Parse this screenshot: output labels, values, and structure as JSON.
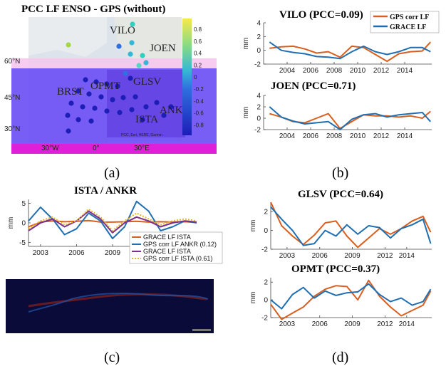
{
  "panels": {
    "a": "(a)",
    "b": "(b)",
    "c": "(c)",
    "d": "(d)"
  },
  "colors": {
    "orange": "#d95f1e",
    "blue": "#1f6fb2",
    "purple": "#7b2f8e",
    "gold": "#e6b422",
    "map_overlay": "#6a4cf5"
  },
  "map": {
    "title": "PCC LF ENSO - GPS (without)",
    "stations": [
      "VILO",
      "JOEN",
      "GLSV",
      "BRST",
      "OPMT",
      "ISTA",
      "ANKR"
    ],
    "lat_labels": [
      "60°N",
      "45°N",
      "30°N"
    ],
    "lon_labels": [
      "30°W",
      "0°",
      "30°E"
    ],
    "colorbar_ticks": [
      "0.8",
      "0.6",
      "0.4",
      "0.2",
      "0",
      "-0.2",
      "-0.4",
      "-0.6",
      "-0.8"
    ],
    "credit": "PCC, Esri, HERE, Garmin"
  },
  "chart_data": [
    {
      "type": "line",
      "title": "VILO (PCC=0.09)",
      "ylabel": "mm",
      "ylim": [
        -2,
        4
      ],
      "yticks": [
        "4",
        "2",
        "0",
        "-2"
      ],
      "xticks": [
        "2004",
        "2006",
        "2008",
        "2010",
        "2012",
        "2014"
      ],
      "legend": [
        "GPS corr LF",
        "GRACE LF"
      ],
      "series": [
        {
          "name": "GPS corr LF",
          "x": [
            2002.5,
            2003.5,
            2004.5,
            2005.5,
            2006.5,
            2007.5,
            2008.5,
            2009.5,
            2010.5,
            2011.5,
            2012.5,
            2013.5,
            2014.5,
            2015.5,
            2016.2
          ],
          "values": [
            0.3,
            0.5,
            0.6,
            0.2,
            -0.4,
            -0.2,
            -1.0,
            0.6,
            0.4,
            -0.6,
            -1.6,
            -0.5,
            -0.2,
            -0.1,
            1.2
          ]
        },
        {
          "name": "GRACE LF",
          "x": [
            2002.5,
            2003.5,
            2004.5,
            2005.5,
            2006.5,
            2007.5,
            2008.5,
            2009.5,
            2010.5,
            2011.5,
            2012.5,
            2013.5,
            2014.5,
            2015.5,
            2016.2
          ],
          "values": [
            1.2,
            0.0,
            -0.3,
            -0.5,
            -0.9,
            -1.0,
            -1.2,
            -0.2,
            0.6,
            -0.2,
            -0.6,
            -0.2,
            0.4,
            0.4,
            -0.2
          ]
        }
      ]
    },
    {
      "type": "line",
      "title": "JOEN (PCC=0.71)",
      "ylabel": "mm",
      "ylim": [
        -2,
        4
      ],
      "yticks": [
        "4",
        "2",
        "0",
        "-2"
      ],
      "xticks": [
        "2004",
        "2006",
        "2008",
        "2010",
        "2012",
        "2014"
      ],
      "series": [
        {
          "name": "GPS corr LF",
          "x": [
            2002.5,
            2003.5,
            2004.5,
            2005.5,
            2006.5,
            2007.5,
            2008.5,
            2009.5,
            2010.5,
            2011.5,
            2012.5,
            2013.5,
            2014.5,
            2015.5,
            2016.2
          ],
          "values": [
            0.8,
            0.2,
            -0.6,
            -0.8,
            0.0,
            0.8,
            -1.8,
            -0.6,
            0.6,
            0.4,
            0.4,
            0.2,
            0.4,
            0.0,
            1.2
          ]
        },
        {
          "name": "GRACE LF",
          "x": [
            2002.5,
            2003.5,
            2004.5,
            2005.5,
            2006.5,
            2007.5,
            2008.5,
            2009.5,
            2010.5,
            2011.5,
            2012.5,
            2013.5,
            2014.5,
            2015.5,
            2016.2
          ],
          "values": [
            2.0,
            0.2,
            -0.5,
            -1.0,
            -0.8,
            -0.6,
            -2.0,
            -0.2,
            0.6,
            0.8,
            0.2,
            0.6,
            0.8,
            1.0,
            -0.6
          ]
        }
      ]
    },
    {
      "type": "line",
      "title": "ISTA / ANKR",
      "ylabel": "mm",
      "ylim": [
        -6,
        6
      ],
      "yticks": [
        "5",
        "0",
        "-5"
      ],
      "xticks": [
        "2003",
        "2006",
        "2009"
      ],
      "legend": [
        "GRACE LF ISTA",
        "GPS corr LF ANKR (0.12)",
        "GRACE LF ISTA",
        "GPS corr LF ISTA (0.61)"
      ],
      "series": [
        {
          "name": "GRACE LF ISTA",
          "x": [
            2002,
            2003,
            2004,
            2005,
            2006,
            2007,
            2008,
            2009,
            2010,
            2011,
            2012,
            2013,
            2014,
            2015,
            2016
          ],
          "values": [
            -1.0,
            0.2,
            0.5,
            0.3,
            0.4,
            0.6,
            0.2,
            0.2,
            0.3,
            0.4,
            0.2,
            0.3,
            0.2,
            0.3,
            0.1
          ]
        },
        {
          "name": "GPS corr LF ANKR (0.12)",
          "x": [
            2002,
            2003,
            2004,
            2005,
            2006,
            2007,
            2008,
            2009,
            2010,
            2011,
            2012,
            2013,
            2014,
            2015,
            2016
          ],
          "values": [
            0.5,
            4.0,
            1.0,
            -3.0,
            -1.5,
            2.5,
            0.5,
            -4.0,
            -1.0,
            5.5,
            3.0,
            -2.0,
            -1.0,
            0.5,
            0.0
          ]
        },
        {
          "name": "GRACE LF ISTA",
          "x": [
            2002,
            2003,
            2004,
            2005,
            2006,
            2007,
            2008,
            2009,
            2010,
            2011,
            2012,
            2013,
            2014,
            2015,
            2016
          ],
          "values": [
            -2.0,
            0.0,
            1.0,
            -1.0,
            0.5,
            3.0,
            1.0,
            -2.5,
            0.0,
            1.5,
            0.5,
            -1.0,
            0.0,
            0.5,
            0.2
          ]
        },
        {
          "name": "GPS corr LF ISTA (0.61)",
          "x": [
            2002,
            2003,
            2004,
            2005,
            2006,
            2007,
            2008,
            2009,
            2010,
            2011,
            2012,
            2013,
            2014,
            2015,
            2016
          ],
          "values": [
            -1.5,
            0.5,
            1.5,
            -0.5,
            0.5,
            3.5,
            1.5,
            -2.0,
            0.5,
            2.5,
            1.0,
            -0.5,
            0.5,
            1.0,
            0.5
          ]
        }
      ]
    },
    {
      "type": "line",
      "title": "GLSV (PCC=0.64)",
      "ylabel": "mm",
      "ylim": [
        -2,
        3
      ],
      "yticks": [
        "2",
        "0",
        "-2"
      ],
      "xticks": [
        "2003",
        "2006",
        "2009",
        "2012",
        "2014"
      ],
      "series": [
        {
          "name": "GPS corr LF",
          "x": [
            2001.5,
            2002.5,
            2003.5,
            2004.5,
            2005.5,
            2006.5,
            2007.5,
            2008.5,
            2009.5,
            2010.5,
            2011.5,
            2012.5,
            2013.5,
            2014.5,
            2015.5,
            2016.2
          ],
          "values": [
            3.0,
            0.5,
            -0.6,
            -1.5,
            -0.5,
            0.8,
            1.0,
            -0.6,
            -1.8,
            -0.8,
            0.2,
            -0.4,
            0.2,
            1.0,
            1.5,
            -0.2
          ]
        },
        {
          "name": "GRACE LF",
          "x": [
            2001.5,
            2002.5,
            2003.5,
            2004.5,
            2005.5,
            2006.5,
            2007.5,
            2008.5,
            2009.5,
            2010.5,
            2011.5,
            2012.5,
            2013.5,
            2014.5,
            2015.5,
            2016.2
          ],
          "values": [
            2.5,
            1.2,
            0.0,
            -1.6,
            -1.4,
            0.0,
            -0.6,
            0.6,
            -0.4,
            0.5,
            0.3,
            -0.8,
            0.2,
            0.6,
            1.2,
            -1.4
          ]
        }
      ]
    },
    {
      "type": "line",
      "title": "OPMT (PCC=0.37)",
      "ylabel": "mm",
      "ylim": [
        -2,
        2.5
      ],
      "yticks": [
        "2",
        "0",
        "-2"
      ],
      "xticks": [
        "2003",
        "2006",
        "2009",
        "2012",
        "2014"
      ],
      "series": [
        {
          "name": "GPS corr LF",
          "x": [
            2001.5,
            2002.5,
            2003.5,
            2004.5,
            2005.5,
            2006.5,
            2007.5,
            2008.5,
            2009.5,
            2010.5,
            2011.5,
            2012.5,
            2013.5,
            2014.5,
            2015.5,
            2016.2
          ],
          "values": [
            -0.5,
            -2.2,
            -1.5,
            -0.8,
            0.4,
            1.2,
            1.6,
            1.5,
            0.0,
            2.2,
            0.4,
            -0.8,
            -1.8,
            -1.2,
            -0.6,
            1.0
          ]
        },
        {
          "name": "GRACE LF",
          "x": [
            2001.5,
            2002.5,
            2003.5,
            2004.5,
            2005.5,
            2006.5,
            2007.5,
            2008.5,
            2009.5,
            2010.5,
            2011.5,
            2012.5,
            2013.5,
            2014.5,
            2015.5,
            2016.2
          ],
          "values": [
            0.0,
            -1.0,
            0.6,
            1.4,
            0.2,
            1.0,
            0.5,
            0.8,
            0.9,
            1.8,
            0.6,
            -0.2,
            0.2,
            -0.6,
            -0.2,
            1.2
          ]
        }
      ]
    }
  ]
}
